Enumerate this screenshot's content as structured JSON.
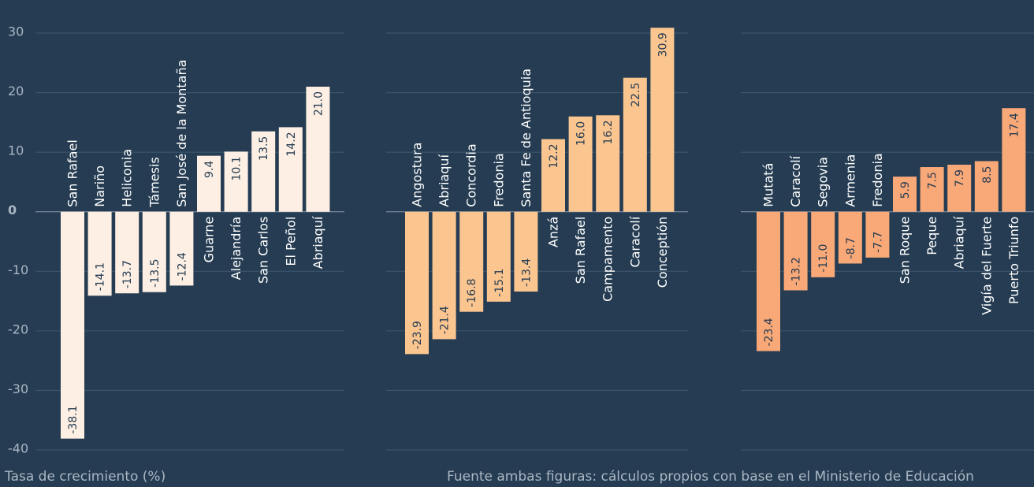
{
  "chart_data": [
    {
      "type": "bar",
      "ylabel": "Tasa de crecimiento (%)",
      "color": "#fdefe3",
      "categories": [
        "San Rafael",
        "Nariño",
        "Heliconia",
        "Támesis",
        "San José de la Montaña",
        "Guarne",
        "Alejandría",
        "San Carlos",
        "El Peñol",
        "Abriaquí"
      ],
      "values": [
        -38.1,
        -14.1,
        -13.7,
        -13.5,
        -12.4,
        9.4,
        10.1,
        13.5,
        14.2,
        21.0
      ],
      "value_labels": [
        "-38.1",
        "-14.1",
        "-13.7",
        "-13.5",
        "-12.4",
        "9.4",
        "10.1",
        "13.5",
        "14.2",
        "21.0"
      ],
      "ylim": [
        -40,
        30
      ],
      "yticks": [
        -40,
        -30,
        -20,
        -10,
        0,
        10,
        20,
        30
      ],
      "grid": true
    },
    {
      "type": "bar",
      "color": "#fbc590",
      "categories": [
        "Angostura",
        "Abriaquí",
        "Concordia",
        "Fredonia",
        "Santa Fe de Antioquia",
        "Anzá",
        "San Rafael",
        "Campamento",
        "Caracolí",
        "Conceptión"
      ],
      "values": [
        -23.9,
        -21.4,
        -16.8,
        -15.1,
        -13.4,
        12.2,
        16.0,
        16.2,
        22.5,
        30.9
      ],
      "value_labels": [
        "-23.9",
        "-21.4",
        "-16.8",
        "-15.1",
        "-13.4",
        "12.2",
        "16.0",
        "16.2",
        "22.5",
        "30.9"
      ],
      "ylim": [
        -40,
        30
      ],
      "yticks": [
        -40,
        -30,
        -20,
        -10,
        0,
        10,
        20,
        30
      ],
      "grid": true
    },
    {
      "type": "bar",
      "color": "#f9a877",
      "categories": [
        "Mutatá",
        "Caracolí",
        "Segovia",
        "Armenia",
        "Fredonia",
        "San Roque",
        "Peque",
        "Abriaquí",
        "Vigía del Fuerte",
        "Puerto Triunfo"
      ],
      "values": [
        -23.4,
        -13.2,
        -11.0,
        -8.7,
        -7.7,
        5.9,
        7.5,
        7.9,
        8.5,
        17.4
      ],
      "value_labels": [
        "-23.4",
        "-13.2",
        "-11.0",
        "-8.7",
        "-7.7",
        "5.9",
        "7.5",
        "7.9",
        "8.5",
        "17.4"
      ],
      "ylim": [
        -40,
        30
      ],
      "yticks": [
        -40,
        -30,
        -20,
        -10,
        0,
        10,
        20,
        30
      ],
      "grid": true
    }
  ],
  "source": "Fuente ambas figuras: cálculos propios con base en el Ministerio de Educación"
}
